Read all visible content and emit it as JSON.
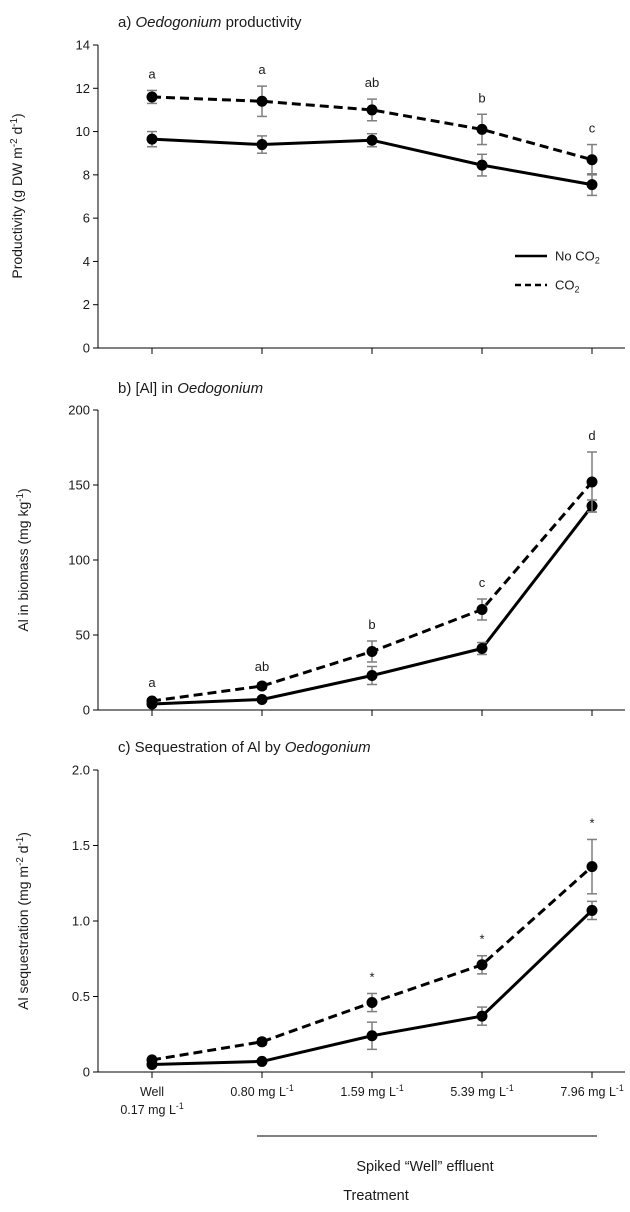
{
  "chart_data": [
    {
      "type": "line",
      "title_prefix": "a) ",
      "title_italic": "Oedogonium",
      "title_suffix": " productivity",
      "ylabel": "Productivity (g DW m-2 d-1)",
      "ylim": [
        0,
        14
      ],
      "yticks": [
        "0",
        "2",
        "4",
        "6",
        "8",
        "10",
        "12",
        "14"
      ],
      "categories": [
        "Well 0.17 mg L-1",
        "0.80 mg L-1",
        "1.59 mg L-1",
        "5.39 mg L-1",
        "7.96 mg L-1"
      ],
      "series": [
        {
          "name": "No CO2",
          "values": [
            9.65,
            9.4,
            9.6,
            8.45,
            7.55
          ],
          "errors": [
            0.35,
            0.4,
            0.3,
            0.5,
            0.5
          ]
        },
        {
          "name": "CO2",
          "values": [
            11.6,
            11.4,
            11.0,
            10.1,
            8.7
          ],
          "errors": [
            0.3,
            0.7,
            0.5,
            0.7,
            0.7
          ]
        }
      ],
      "annotations": [
        "a",
        "a",
        "ab",
        "b",
        "c"
      ],
      "legend": {
        "position": "right",
        "entries": [
          "No CO2",
          "CO2"
        ]
      }
    },
    {
      "type": "line",
      "title_prefix": "b) [Al] in ",
      "title_italic": "Oedogonium",
      "title_suffix": "",
      "ylabel": "Al in biomass (mg kg-1)",
      "ylim": [
        0,
        200
      ],
      "yticks": [
        "0",
        "50",
        "100",
        "150",
        "200"
      ],
      "categories": [
        "Well 0.17 mg L-1",
        "0.80 mg L-1",
        "1.59 mg L-1",
        "5.39 mg L-1",
        "7.96 mg L-1"
      ],
      "series": [
        {
          "name": "No CO2",
          "values": [
            4,
            7,
            23,
            41,
            136
          ],
          "errors": [
            1.5,
            1.5,
            6,
            4,
            4
          ]
        },
        {
          "name": "CO2",
          "values": [
            6,
            16,
            39,
            67,
            152
          ],
          "errors": [
            1.5,
            2,
            7,
            7,
            20
          ]
        }
      ],
      "annotations": [
        "a",
        "ab",
        "b",
        "c",
        "d"
      ]
    },
    {
      "type": "line",
      "title_prefix": "c) Sequestration of Al by ",
      "title_italic": "Oedogonium",
      "title_suffix": "",
      "ylabel": "Al sequestration (mg m-2 d-1)",
      "ylim": [
        0,
        2.0
      ],
      "yticks": [
        "0",
        "0.5",
        "1.0",
        "1.5",
        "2.0"
      ],
      "categories": [
        "Well 0.17 mg L-1",
        "0.80 mg L-1",
        "1.59 mg L-1",
        "5.39 mg L-1",
        "7.96 mg L-1"
      ],
      "series": [
        {
          "name": "No CO2",
          "values": [
            0.05,
            0.07,
            0.24,
            0.37,
            1.07
          ],
          "errors": [
            0.01,
            0.01,
            0.09,
            0.06,
            0.06
          ]
        },
        {
          "name": "CO2",
          "values": [
            0.08,
            0.2,
            0.46,
            0.71,
            1.36
          ],
          "errors": [
            0.01,
            0.02,
            0.06,
            0.06,
            0.18
          ]
        }
      ],
      "annotations": [
        "",
        "",
        "*",
        "*",
        "*"
      ]
    }
  ],
  "xtick_labels": [
    {
      "lines": [
        "Well",
        "0.17 mg L-1"
      ]
    },
    {
      "lines": [
        "0.80 mg L-1"
      ]
    },
    {
      "lines": [
        "1.59 mg L-1"
      ]
    },
    {
      "lines": [
        "5.39 mg L-1"
      ]
    },
    {
      "lines": [
        "7.96 mg L-1"
      ]
    }
  ],
  "bracket_label": "Spiked “Well” effluent",
  "xlabel": "Treatment"
}
